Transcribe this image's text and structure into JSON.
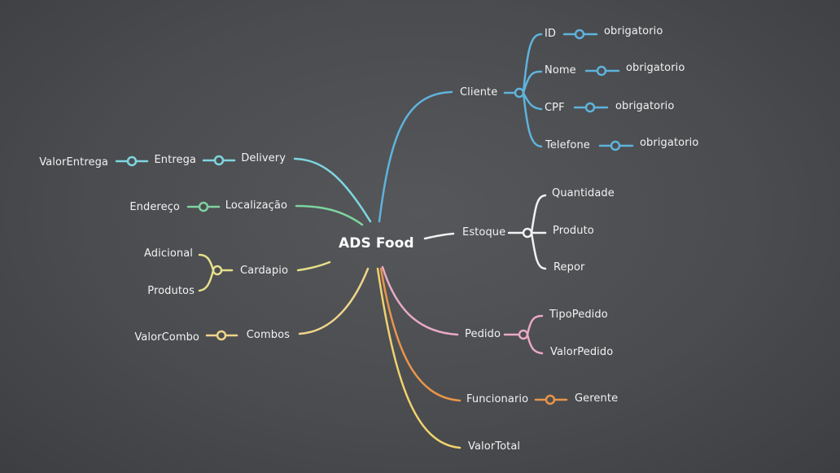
{
  "root": "ADS Food",
  "colors": {
    "cliente": "#5fb3dc",
    "delivery": "#7fd6e0",
    "localizacao": "#7ed3a0",
    "cardapio": "#e6e08a",
    "combos": "#f0d58a",
    "estoque": "#f2f2f2",
    "pedido": "#e9a9c6",
    "funcionario": "#e9954a",
    "valortotal": "#f1d26e"
  },
  "branches": {
    "cliente": {
      "label": "Cliente",
      "children": [
        {
          "label": "ID",
          "note": "obrigatorio"
        },
        {
          "label": "Nome",
          "note": "obrigatorio"
        },
        {
          "label": "CPF",
          "note": "obrigatorio"
        },
        {
          "label": "Telefone",
          "note": "obrigatorio"
        }
      ]
    },
    "estoque": {
      "label": "Estoque",
      "children": [
        "Quantidade",
        "Produto",
        "Repor"
      ]
    },
    "pedido": {
      "label": "Pedido",
      "children": [
        "TipoPedido",
        "ValorPedido"
      ]
    },
    "funcionario": {
      "label": "Funcionario",
      "child": "Gerente"
    },
    "valortotal": {
      "label": "ValorTotal"
    },
    "delivery": {
      "label": "Delivery",
      "child": "Entrega",
      "grandchild": "ValorEntrega"
    },
    "localizacao": {
      "label": "Localização",
      "child": "Endereço"
    },
    "cardapio": {
      "label": "Cardapio",
      "children": [
        "Adicional",
        "Produtos"
      ]
    },
    "combos": {
      "label": "Combos",
      "child": "ValorCombo"
    }
  }
}
